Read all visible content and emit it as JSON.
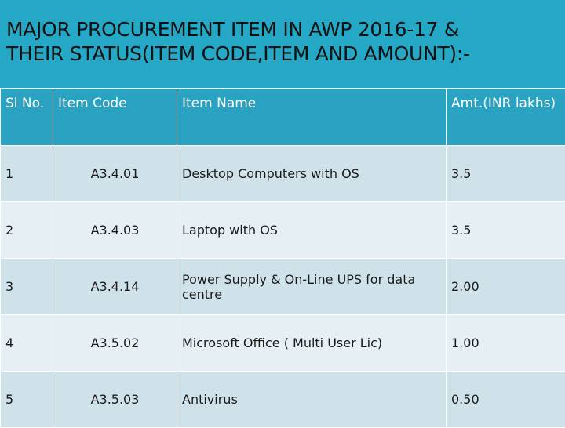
{
  "title": "MAJOR PROCUREMENT ITEM IN AWP 2016-17 &\nTHEIR STATUS(ITEM CODE,ITEM AND AMOUNT):-",
  "table": {
    "headers": [
      "Sl No.",
      "Item Code",
      "Item Name",
      "Amt.(INR lakhs)"
    ],
    "rows": [
      {
        "sl": "1",
        "code": "A3.4.01",
        "name": "Desktop Computers with OS",
        "amount": "3.5"
      },
      {
        "sl": "2",
        "code": "A3.4.03",
        "name": "Laptop with OS",
        "amount": "3.5"
      },
      {
        "sl": "3",
        "code": "A3.4.14",
        "name": "Power Supply & On-Line UPS for data centre",
        "amount": "2.00"
      },
      {
        "sl": "4",
        "code": "A3.5.02",
        "name": "Microsoft Office ( Multi User Lic)",
        "amount": "1.00"
      },
      {
        "sl": "5",
        "code": "A3.5.03",
        "name": "Antivirus",
        "amount": "0.50"
      }
    ]
  },
  "colors": {
    "background": "#25a8c6",
    "header_bg": "#2aa3c2",
    "row_dark": "#cfe2ea",
    "row_light": "#e6f0f4"
  }
}
